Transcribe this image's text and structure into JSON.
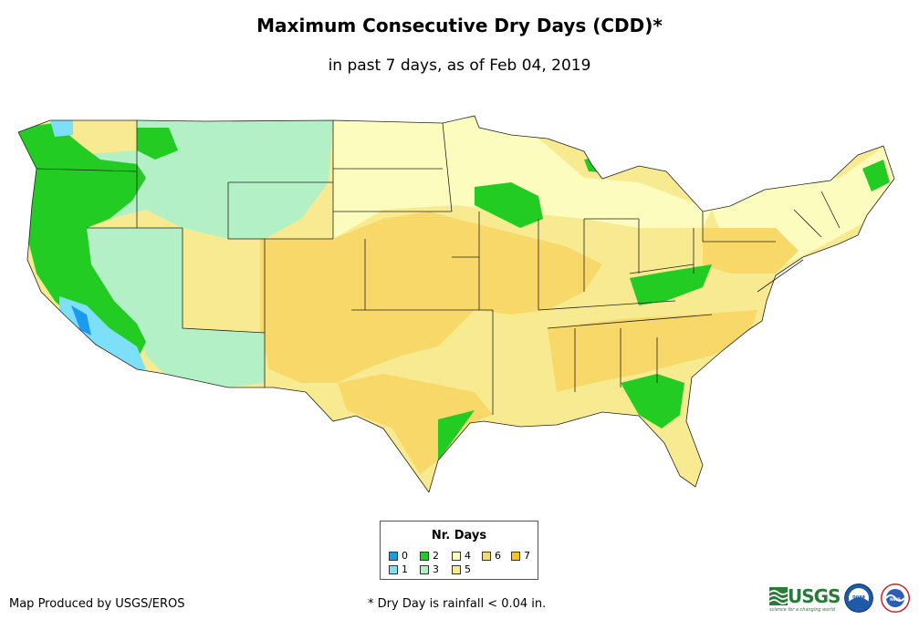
{
  "title": "Maximum Consecutive Dry Days (CDD)*",
  "subtitle": "in past 7 days, as of Feb 04, 2019",
  "legend": {
    "title": "Nr. Days",
    "items": [
      {
        "label": "0",
        "color": "#1a9af0"
      },
      {
        "label": "1",
        "color": "#7ee0f8"
      },
      {
        "label": "2",
        "color": "#22cc22"
      },
      {
        "label": "3",
        "color": "#b3f0c6"
      },
      {
        "label": "4",
        "color": "#fcfcbe"
      },
      {
        "label": "5",
        "color": "#f8ea90"
      },
      {
        "label": "6",
        "color": "#f8d868"
      },
      {
        "label": "7",
        "color": "#f8c41e"
      }
    ]
  },
  "credit": "Map Produced by USGS/EROS",
  "footnote": "* Dry Day is rainfall < 0.04 in.",
  "logos": {
    "usgs": "USGS",
    "usgs_tagline": "science for a changing world",
    "noaa": "noaa",
    "nws": "NWS"
  }
}
